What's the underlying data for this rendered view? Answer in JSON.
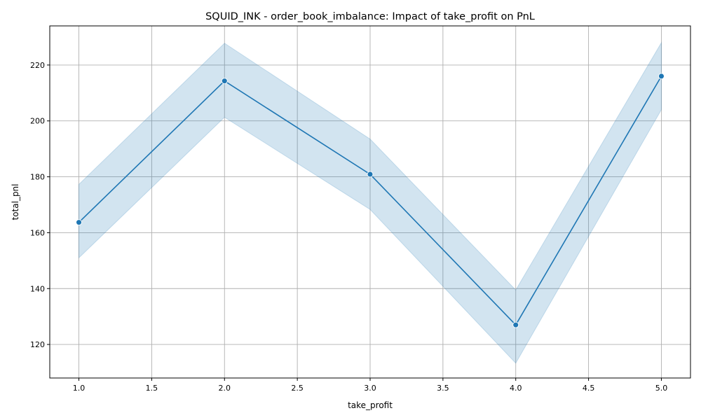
{
  "chart_data": {
    "type": "line",
    "title": "SQUID_INK - order_book_imbalance: Impact of take_profit on PnL",
    "xlabel": "take_profit",
    "ylabel": "total_pnl",
    "xlim": [
      0.8,
      5.2
    ],
    "ylim": [
      108,
      234
    ],
    "xticks": [
      1.0,
      1.5,
      2.0,
      2.5,
      3.0,
      3.5,
      4.0,
      4.5,
      5.0
    ],
    "xtick_labels": [
      "1.0",
      "1.5",
      "2.0",
      "2.5",
      "3.0",
      "3.5",
      "4.0",
      "4.5",
      "5.0"
    ],
    "yticks": [
      120,
      140,
      160,
      180,
      200,
      220
    ],
    "ytick_labels": [
      "120",
      "140",
      "160",
      "180",
      "200",
      "220"
    ],
    "grid": true,
    "series": [
      {
        "x": [
          1.0,
          2.0,
          3.0,
          4.0,
          5.0
        ],
        "y": [
          163.7,
          214.3,
          180.9,
          127.0,
          216.0
        ],
        "ci_lower": [
          151.0,
          201.3,
          168.3,
          113.3,
          204.0
        ],
        "ci_upper": [
          177.3,
          227.8,
          193.5,
          139.5,
          228.0
        ],
        "color": "#1f77b4",
        "band_color": "#1f77b4",
        "marker": "circle"
      }
    ]
  }
}
